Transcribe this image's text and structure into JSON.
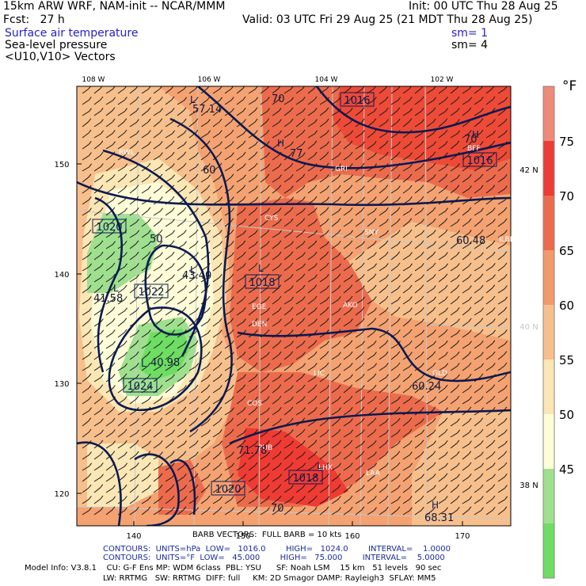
{
  "header": {
    "model_line": "15km ARW WRF, NAM-init -- NCAR/MMM",
    "init": "Init: 00 UTC Thu 28 Aug 25",
    "fcst": "Fcst:   27 h",
    "valid": "Valid: 03 UTC Fri 29 Aug 25 (21 MDT Thu 28 Aug 25)",
    "field1": "Surface air temperature",
    "field2": "Sea-level pressure",
    "field3": "<U10,V10> Vectors",
    "sm1": "sm= 1",
    "sm2": "sm= 4"
  },
  "map": {
    "lon_labels": [
      "108 W",
      "106 W",
      "104 W",
      "102 W"
    ],
    "lat_labels": [
      "42 N",
      "40 N",
      "38 N"
    ],
    "y_ticks": [
      "150",
      "140",
      "130",
      "120"
    ],
    "x_ticks": [
      "140",
      "150",
      "160",
      "170"
    ],
    "stations": [
      "RWL",
      "CYS",
      "SNY",
      "AKO",
      "DEN",
      "LIC",
      "GLD",
      "COS",
      "LAA",
      "PUB",
      "LHX",
      "BFF",
      "GRI",
      "EGE",
      "ILBE"
    ],
    "pressure_boxes": [
      "1016",
      "1016",
      "1020",
      "1022",
      "1018",
      "1024",
      "1018",
      "1020"
    ],
    "highs_lows": [
      "H",
      "L",
      "L",
      "L",
      "L",
      "L",
      "L",
      "H",
      "H"
    ],
    "value_labels": [
      "57.14",
      "60",
      "70",
      "77",
      "60.48",
      "50",
      "43.40",
      "41.58",
      "40.98",
      "60.24",
      "71.78",
      "70",
      "68.31",
      "70"
    ],
    "station_colors": {
      "land_line": "#c8c8c8",
      "isobar": "#0a1a55",
      "barb": "#1a1a1a"
    }
  },
  "colorbar": {
    "unit": "°F",
    "labels": [
      "75",
      "70",
      "65",
      "60",
      "55",
      "50",
      "45"
    ],
    "colors": [
      "#f08a78",
      "#ee3b33",
      "#ec6b4d",
      "#f49a6a",
      "#f7bf8b",
      "#fbe6b5",
      "#fffdd8",
      "#9fe08f",
      "#6edd63"
    ]
  },
  "footer": {
    "barb": "BARB VECTORS:  FULL BARB = 10 kts",
    "contour1": "CONTOURS:  UNITS=hPa  LOW=   1016.0        HIGH=   1024.0        INTERVAL=    1.0000",
    "contour2": "CONTOURS:  UNITS=°F  LOW=   45.000        HIGH=   75.000        INTERVAL=    5.0000",
    "model_info1": "Model Info: V3.8.1    CU: G-F Ens MP: WDM 6class  PBL: YSU      SF: Noah LSM    15 km   51 levels   90 sec",
    "model_info2": "LW: RRTMG   SW: RRTMG  DIFF: full     KM: 2D Smagor DAMP: Rayleigh3  SFLAY: MM5"
  }
}
